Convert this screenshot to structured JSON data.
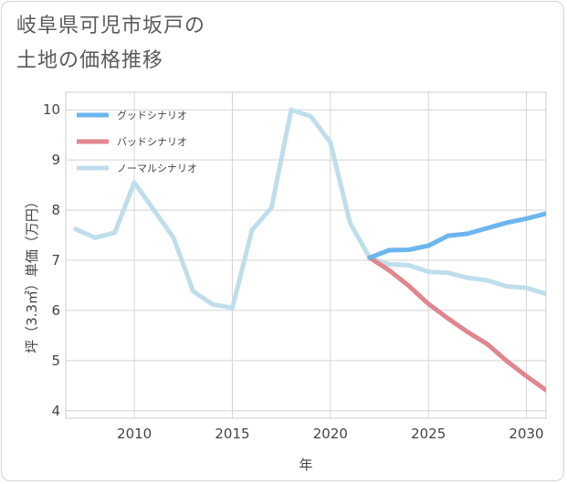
{
  "title_lines": [
    "岐阜県可児市坂戸の",
    "土地の価格推移"
  ],
  "chart_data": {
    "type": "line",
    "xlabel": "年",
    "ylabel": "坪（3.3㎡）単価（万円）",
    "xlim": [
      2006.5,
      2031
    ],
    "ylim": [
      3.85,
      10.35
    ],
    "xticks": [
      2010,
      2015,
      2020,
      2025,
      2030
    ],
    "yticks": [
      4,
      5,
      6,
      7,
      8,
      9,
      10
    ],
    "grid": true,
    "legend_position": "top-left",
    "series": [
      {
        "name": "グッドシナリオ",
        "color": "#6cb6ee",
        "x": [
          2022,
          2023,
          2024,
          2025,
          2026,
          2027,
          2028,
          2029,
          2030,
          2031
        ],
        "y": [
          7.05,
          7.2,
          7.21,
          7.29,
          7.49,
          7.53,
          7.64,
          7.75,
          7.83,
          7.93
        ]
      },
      {
        "name": "バッドシナリオ",
        "color": "#e0868e",
        "x": [
          2022,
          2023,
          2024,
          2025,
          2026,
          2027,
          2028,
          2029,
          2030,
          2031
        ],
        "y": [
          7.05,
          6.8,
          6.49,
          6.13,
          5.84,
          5.57,
          5.33,
          4.99,
          4.69,
          4.41
        ]
      },
      {
        "name": "ノーマルシナリオ",
        "color": "#bfdeec",
        "x": [
          2007,
          2008,
          2009,
          2010,
          2011,
          2012,
          2013,
          2014,
          2015,
          2016,
          2017,
          2018,
          2019,
          2020,
          2021,
          2022,
          2023,
          2024,
          2025,
          2026,
          2027,
          2028,
          2029,
          2030,
          2031
        ],
        "y": [
          7.62,
          7.45,
          7.55,
          8.55,
          8.0,
          7.45,
          6.38,
          6.12,
          6.05,
          7.6,
          8.05,
          10.0,
          9.87,
          9.35,
          7.75,
          7.05,
          6.92,
          6.9,
          6.77,
          6.75,
          6.65,
          6.6,
          6.48,
          6.45,
          6.33
        ]
      }
    ]
  }
}
